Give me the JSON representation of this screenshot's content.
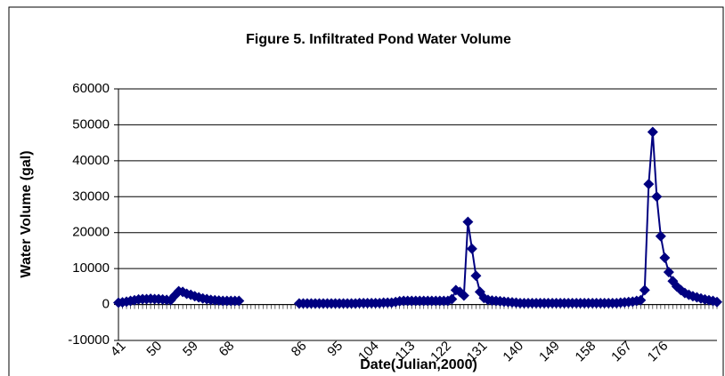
{
  "chart_data": {
    "type": "line",
    "title": "Figure 5. Infiltrated Pond  Water Volume",
    "x_label": "Date(Julian,2000)",
    "y_label": "Water Volume (gal)",
    "x": [
      41,
      42,
      43,
      44,
      45,
      46,
      47,
      48,
      49,
      50,
      51,
      52,
      53,
      54,
      55,
      56,
      57,
      58,
      59,
      60,
      61,
      62,
      63,
      64,
      65,
      66,
      67,
      68,
      69,
      70,
      71,
      72,
      73,
      74,
      75,
      76,
      77,
      78,
      79,
      80,
      81,
      82,
      83,
      84,
      85,
      86,
      87,
      88,
      89,
      90,
      91,
      92,
      93,
      94,
      95,
      96,
      97,
      98,
      99,
      100,
      101,
      102,
      103,
      104,
      105,
      106,
      107,
      108,
      109,
      110,
      111,
      112,
      113,
      114,
      115,
      116,
      117,
      118,
      119,
      120,
      121,
      122,
      123,
      124,
      125,
      126,
      127,
      128,
      129,
      130,
      131,
      132,
      133,
      134,
      135,
      136,
      137,
      138,
      139,
      140,
      141,
      142,
      143,
      144,
      145,
      146,
      147,
      148,
      149,
      150,
      151,
      152,
      153,
      154,
      155,
      156,
      157,
      158,
      159,
      160,
      161,
      162,
      163,
      164,
      165,
      166,
      167,
      168,
      169,
      170,
      171,
      172,
      173,
      174,
      175,
      176,
      177,
      178,
      179,
      180,
      181,
      182,
      183,
      184,
      185,
      186,
      187,
      188,
      189,
      190
    ],
    "series": [
      {
        "color": "#000080",
        "values": [
          500,
          600,
          800,
          1000,
          1200,
          1400,
          1500,
          1500,
          1600,
          1500,
          1500,
          1400,
          1300,
          1200,
          2500,
          3700,
          3500,
          3000,
          2700,
          2300,
          2000,
          1700,
          1500,
          1300,
          1200,
          1100,
          1000,
          1000,
          1000,
          1000,
          1000,
          null,
          null,
          null,
          null,
          null,
          null,
          null,
          null,
          null,
          null,
          null,
          null,
          null,
          null,
          300,
          300,
          300,
          300,
          300,
          300,
          300,
          300,
          300,
          300,
          300,
          300,
          300,
          300,
          300,
          400,
          400,
          400,
          400,
          400,
          400,
          500,
          500,
          500,
          700,
          900,
          1000,
          1000,
          1000,
          1000,
          1000,
          1000,
          1000,
          1000,
          1000,
          1000,
          1000,
          1000,
          1500,
          4000,
          3500,
          2500,
          23000,
          15500,
          8000,
          3500,
          1800,
          1300,
          1100,
          1000,
          900,
          800,
          700,
          600,
          500,
          400,
          400,
          400,
          400,
          400,
          400,
          400,
          400,
          400,
          400,
          400,
          400,
          400,
          400,
          400,
          400,
          400,
          400,
          400,
          400,
          400,
          400,
          400,
          400,
          400,
          500,
          600,
          700,
          800,
          1000,
          1200,
          4000,
          33500,
          48000,
          30000,
          19000,
          13000,
          9000,
          6500,
          5000,
          4000,
          3200,
          2700,
          2300,
          2000,
          1700,
          1400,
          1200,
          1000,
          700
        ]
      }
    ],
    "xlim": [
      41,
      190
    ],
    "xticks": [
      41,
      50,
      59,
      68,
      86,
      95,
      104,
      113,
      122,
      131,
      140,
      149,
      158,
      167,
      176
    ],
    "ylim": [
      -10000,
      60000
    ],
    "yticks": [
      -10000,
      0,
      10000,
      20000,
      30000,
      40000,
      50000,
      60000
    ],
    "grid": true
  }
}
